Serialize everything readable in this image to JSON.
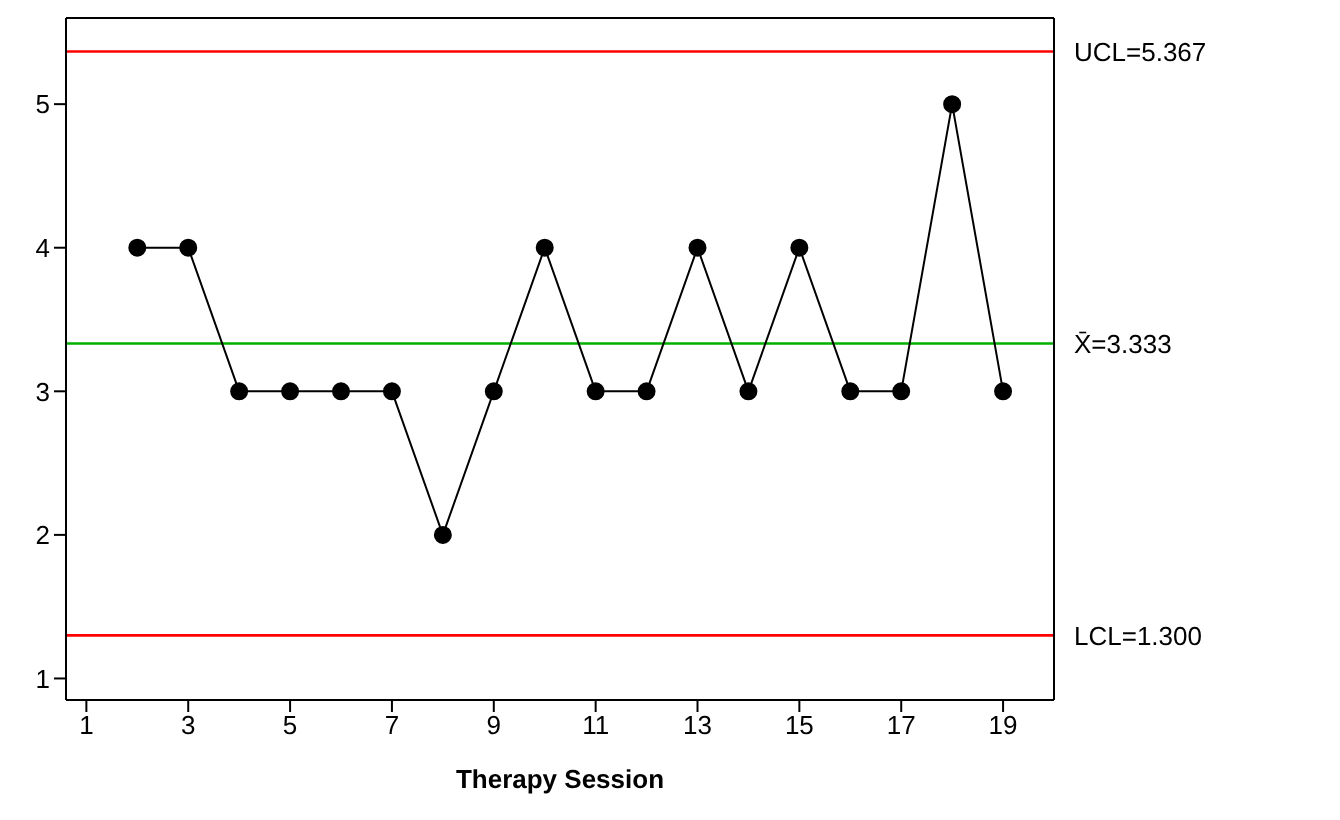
{
  "chart_data": {
    "type": "line",
    "xlabel": "Therapy Session",
    "x": [
      2,
      3,
      4,
      5,
      6,
      7,
      8,
      9,
      10,
      11,
      12,
      13,
      14,
      15,
      16,
      17,
      18,
      19
    ],
    "series": [
      {
        "color": "#000000",
        "values": [
          4,
          4,
          3,
          3,
          3,
          3,
          2,
          3,
          4,
          3,
          3,
          4,
          3,
          4,
          3,
          3,
          5,
          3
        ]
      }
    ],
    "marker": "circle",
    "line_style": "solid",
    "xlim": [
      0.6,
      20
    ],
    "xticks": [
      1,
      3,
      5,
      7,
      9,
      11,
      13,
      15,
      17,
      19
    ],
    "ylim": [
      0.85,
      5.6
    ],
    "yticks": [
      1,
      2,
      3,
      4,
      5
    ],
    "ref_lines": [
      {
        "axis": "y",
        "value": 5.367,
        "label": "UCL=5.367",
        "color": "#ff0000"
      },
      {
        "axis": "y",
        "value": 3.333,
        "label": "X̄=3.333",
        "color": "#00b000"
      },
      {
        "axis": "y",
        "value": 1.3,
        "label": "LCL=1.300",
        "color": "#ff0000"
      }
    ]
  }
}
